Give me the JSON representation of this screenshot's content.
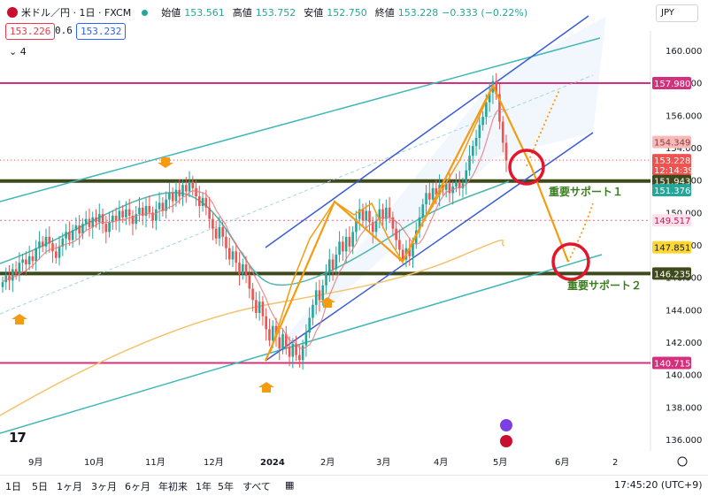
{
  "header": {
    "symbol": "米ドル／円 · 1日 · FXCM",
    "open_label": "始値",
    "open": "153.561",
    "high_label": "高値",
    "high": "153.752",
    "low_label": "安値",
    "low": "152.750",
    "close_label": "終値",
    "close": "153.228",
    "change": "−0.333 (−0.22%)"
  },
  "quotes": {
    "sell": "153.226",
    "spread": "0.6",
    "buy": "153.232"
  },
  "indicators_count": "4",
  "currency": "JPY",
  "time_ranges": [
    "1日",
    "5日",
    "1ヶ月",
    "3ヶ月",
    "6ヶ月",
    "年初来",
    "1年",
    "5年",
    "すべて"
  ],
  "clock": "17:45:20 (UTC+9)",
  "colors": {
    "up": "#26a69a",
    "down": "#ef5350",
    "magenta": "#d5307e",
    "support": "#3f4a1c",
    "channel": "#3a5bd9",
    "teal": "#40b7b7",
    "orange": "#f39c12",
    "circle": "#e3162b"
  },
  "chart_data": {
    "type": "candlestick",
    "x_tick_labels": [
      "9月",
      "10月",
      "11月",
      "12月",
      "2024",
      "2月",
      "3月",
      "4月",
      "5月",
      "6月",
      "2"
    ],
    "y_ticks": [
      136.0,
      138.0,
      140.0,
      142.0,
      144.0,
      146.0,
      148.0,
      150.0,
      152.0,
      154.0,
      156.0,
      158.0,
      160.0
    ],
    "y_range": [
      135.0,
      162.0
    ],
    "price_labels": [
      "157.980",
      "154.349",
      "153.228",
      "12:14:39",
      "151.943",
      "151.376",
      "149.517",
      "147.851",
      "146.235",
      "140.715"
    ],
    "horizontal_levels": [
      {
        "value": 157.98,
        "style": "magenta"
      },
      {
        "value": 140.715,
        "style": "magenta"
      },
      {
        "value": 151.943,
        "style": "support"
      },
      {
        "value": 146.235,
        "style": "support"
      },
      {
        "value": 149.517,
        "style": "dotted"
      },
      {
        "value": 153.228,
        "style": "dotted-current"
      }
    ],
    "annotations": [
      "重要サポート１",
      "重要サポート２"
    ],
    "closes": [
      145.7,
      146.1,
      145.8,
      146.5,
      146.2,
      146.9,
      147.1,
      146.8,
      147.3,
      147.0,
      147.8,
      148.2,
      147.9,
      148.5,
      148.1,
      147.6,
      147.2,
      147.9,
      148.4,
      148.8,
      148.3,
      148.9,
      149.2,
      148.7,
      149.3,
      149.6,
      149.1,
      149.7,
      149.4,
      149.9,
      149.3,
      148.8,
      149.4,
      149.8,
      149.5,
      150.1,
      149.7,
      150.2,
      149.8,
      149.3,
      149.9,
      150.3,
      149.8,
      150.4,
      150.0,
      149.5,
      150.2,
      150.6,
      150.1,
      150.8,
      151.2,
      150.7,
      151.4,
      151.0,
      151.7,
      151.3,
      151.9,
      151.5,
      151.0,
      150.4,
      150.9,
      150.3,
      149.6,
      149.0,
      148.4,
      149.1,
      148.5,
      147.8,
      147.1,
      147.6,
      146.9,
      146.2,
      146.8,
      146.1,
      145.3,
      144.6,
      143.8,
      144.5,
      143.6,
      142.8,
      142.1,
      143.0,
      142.3,
      141.6,
      142.5,
      141.7,
      141.1,
      141.9,
      141.2,
      140.9,
      141.8,
      142.6,
      143.5,
      144.3,
      145.2,
      144.6,
      145.5,
      146.3,
      147.1,
      146.5,
      147.4,
      148.2,
      147.6,
      148.5,
      147.9,
      148.8,
      149.6,
      150.2,
      149.5,
      150.1,
      149.4,
      148.8,
      149.5,
      150.2,
      149.6,
      150.3,
      149.7,
      149.0,
      148.3,
      147.7,
      147.1,
      147.8,
      147.3,
      148.1,
      148.9,
      149.7,
      150.5,
      151.2,
      150.8,
      151.5,
      151.1,
      151.7,
      151.4,
      151.8,
      151.2,
      151.6,
      151.9,
      151.5,
      151.8,
      152.6,
      153.5,
      154.1,
      154.6,
      155.4,
      155.9,
      156.8,
      157.4,
      158.1,
      157.3,
      155.6,
      154.3,
      153.2
    ]
  }
}
